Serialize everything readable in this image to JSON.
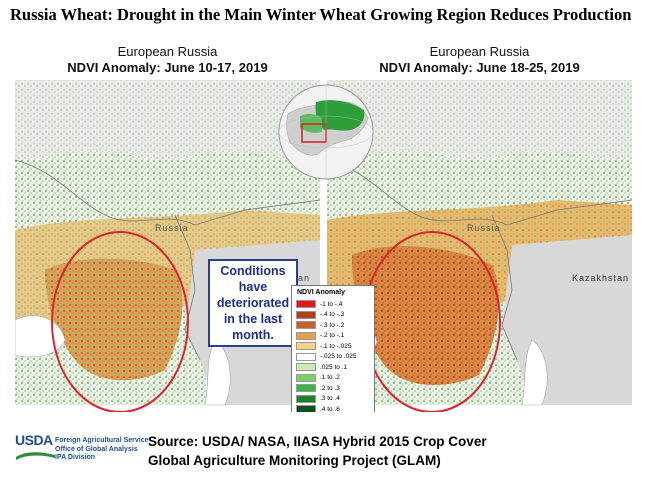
{
  "title": "Russia Wheat: Drought in the Main Winter Wheat Growing Region Reduces Production",
  "panels": [
    {
      "heading": "European Russia",
      "subheading": "NDVI Anomaly: June 10-17, 2019"
    },
    {
      "heading": "European Russia",
      "subheading": "NDVI Anomaly: June 18-25, 2019"
    }
  ],
  "callout": {
    "lines": [
      "Conditions",
      "have",
      "deteriorated",
      "in the last",
      "month."
    ]
  },
  "legend": {
    "title": "NDVI Anomaly",
    "items": [
      {
        "label": "-1 to -.4",
        "color": "#e8161a"
      },
      {
        "label": "-.4 to -.3",
        "color": "#b2401c"
      },
      {
        "label": "-.3 to -.2",
        "color": "#c7632a"
      },
      {
        "label": "-.2 to -.1",
        "color": "#e1a04c"
      },
      {
        "label": "-.1 to -.025",
        "color": "#f5d38b"
      },
      {
        "label": "-.025 to .025",
        "color": "#ffffff"
      },
      {
        "label": ".025 to .1",
        "color": "#c6ecb3"
      },
      {
        "label": ".1 to .2",
        "color": "#7ad06b"
      },
      {
        "label": ".2 to .3",
        "color": "#3cb44a"
      },
      {
        "label": ".3 to .4",
        "color": "#1e7d2e"
      },
      {
        "label": ".4 to .6",
        "color": "#0f4f1c"
      }
    ]
  },
  "map_labels": {
    "russia": "Russia",
    "kazakhstan_left": "hstan",
    "kazakhstan_right": "Kazakhstan"
  },
  "footer": {
    "logo": "USDA",
    "agency_lines": [
      "Foreign Agricultural Service",
      "Office of Global Analysis",
      "IPA Division"
    ],
    "source_line1": "Source: USDA/ NASA, IIASA Hybrid 2015 Crop Cover",
    "source_line2": "Global Agriculture Monitoring Project (GLAM)"
  },
  "colors": {
    "drought_circle": "#d9262c",
    "callout_text": "#1c2f8a",
    "usda_blue": "#1b4f8e",
    "inset_highlight": "#2e9e3a"
  }
}
